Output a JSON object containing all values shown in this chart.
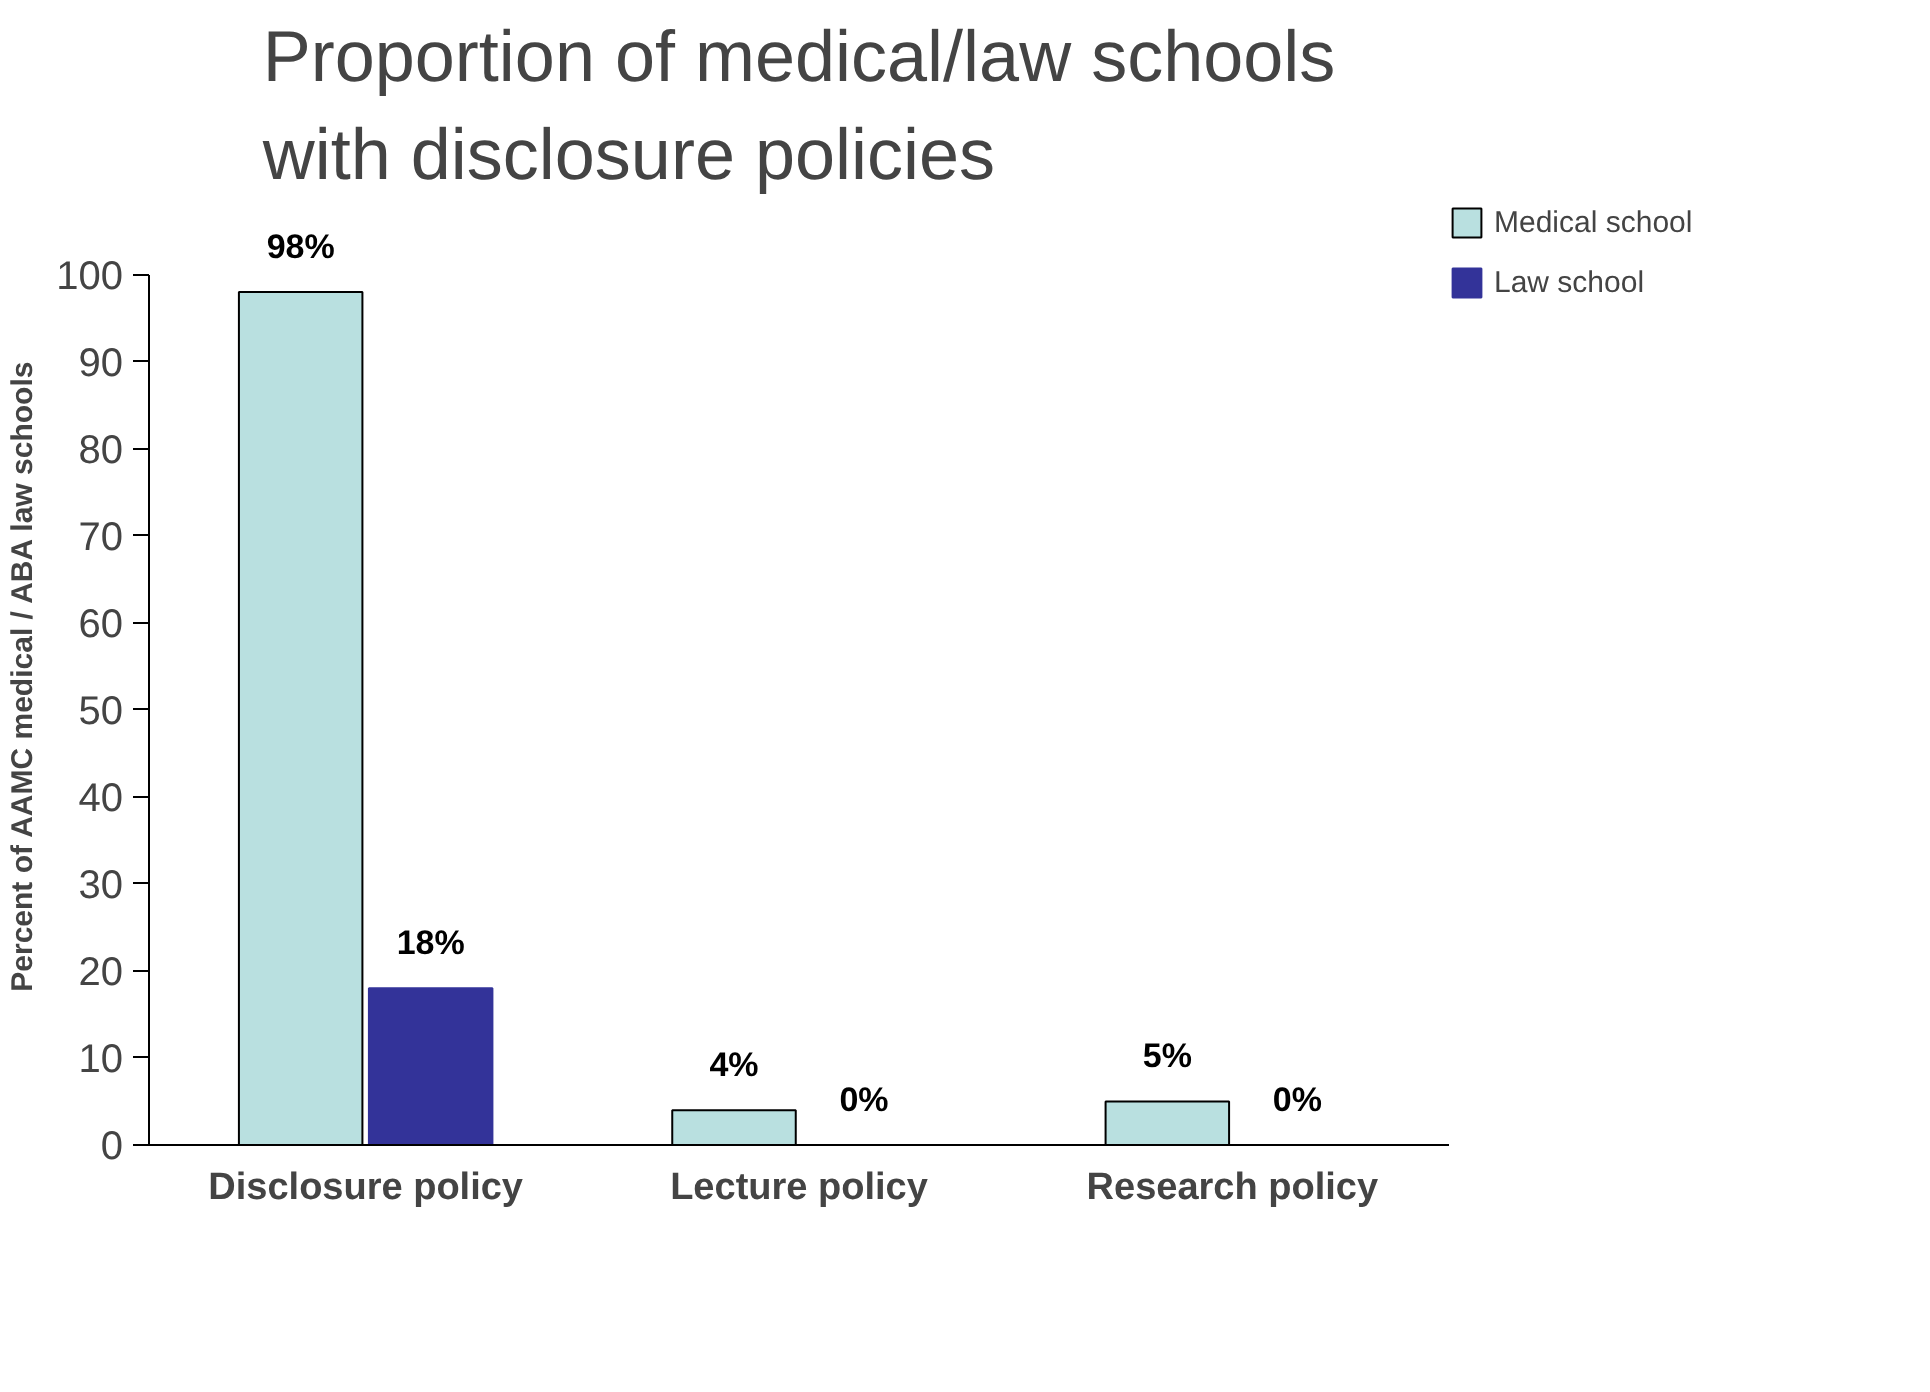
{
  "chart_data": {
    "type": "bar",
    "title": "Proportion of medical/law schools\nwith disclosure policies",
    "ylabel": "Percent of AAMC medical / ABA law schools",
    "categories": [
      "Disclosure policy",
      "Lecture policy",
      "Research policy"
    ],
    "series": [
      {
        "name": "Medical school",
        "color": "#b9e0e0",
        "values": [
          98,
          4,
          5
        ],
        "value_labels": [
          "98%",
          "4%",
          "5%"
        ]
      },
      {
        "name": "Law school",
        "color": "#333399",
        "values": [
          18,
          0,
          0
        ],
        "value_labels": [
          "18%",
          "0%",
          "0%"
        ]
      }
    ],
    "ylim": [
      0,
      100
    ],
    "yticks": [
      0,
      10,
      20,
      30,
      40,
      50,
      60,
      70,
      80,
      90,
      100
    ],
    "grid": false,
    "legend": "right"
  }
}
